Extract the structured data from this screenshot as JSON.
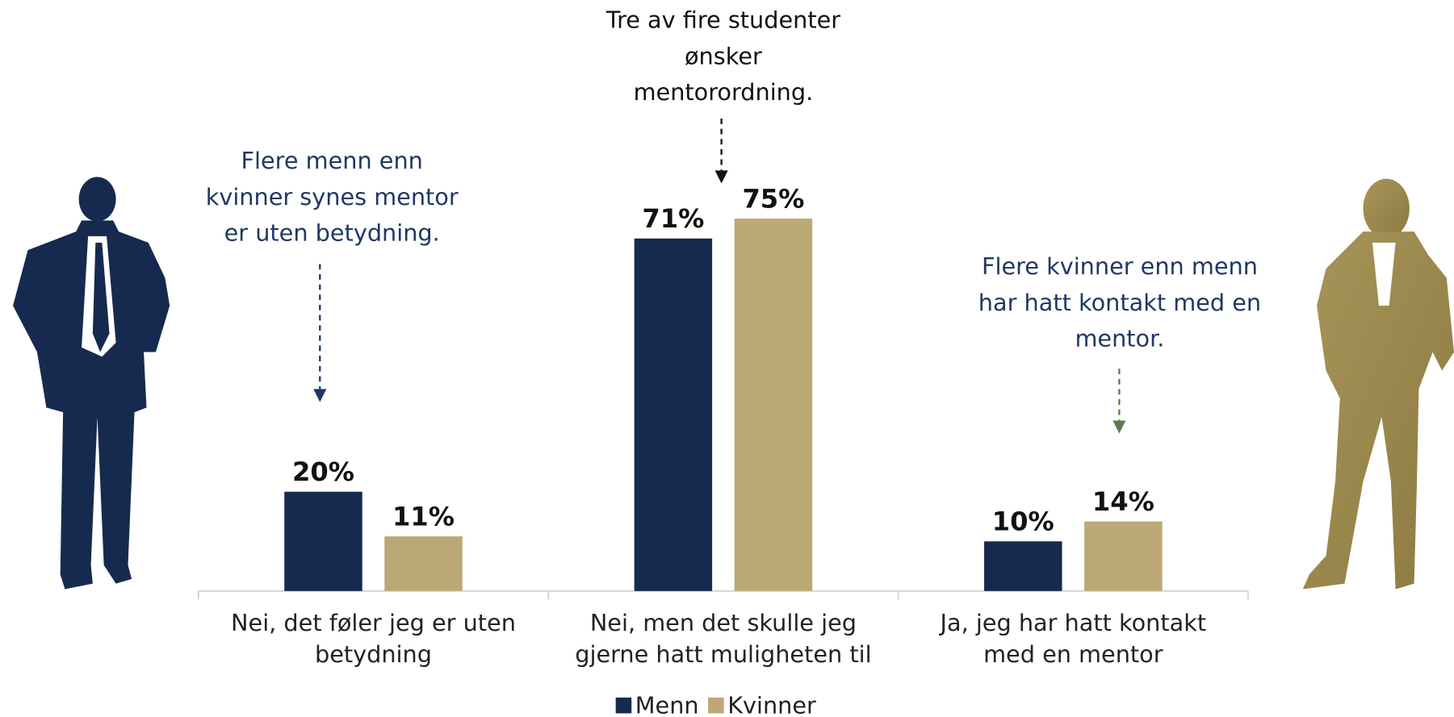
{
  "chart_data": {
    "type": "bar",
    "categories": [
      "Nei, det føler jeg er uten\nbetydning",
      "Nei, men det skulle jeg\ngjerne hatt muligheten til",
      "Ja, jeg har hatt kontakt\nmed en mentor"
    ],
    "series": [
      {
        "name": "Menn",
        "color": "#152a4e",
        "values": [
          20,
          71,
          10
        ],
        "value_labels": [
          "20%",
          "71%",
          "10%"
        ]
      },
      {
        "name": "Kvinner",
        "color": "#bca874",
        "values": [
          11,
          75,
          14
        ],
        "value_labels": [
          "11%",
          "75%",
          "14%"
        ]
      }
    ],
    "annotations": [
      "Flere menn enn\nkvinner synes mentor\ner uten betydning.",
      "Tre av fire studenter\nønsker\nmentorordning.",
      "Flere kvinner enn menn\nhar hatt kontakt med en\nmentor."
    ],
    "legend": "bottom"
  }
}
